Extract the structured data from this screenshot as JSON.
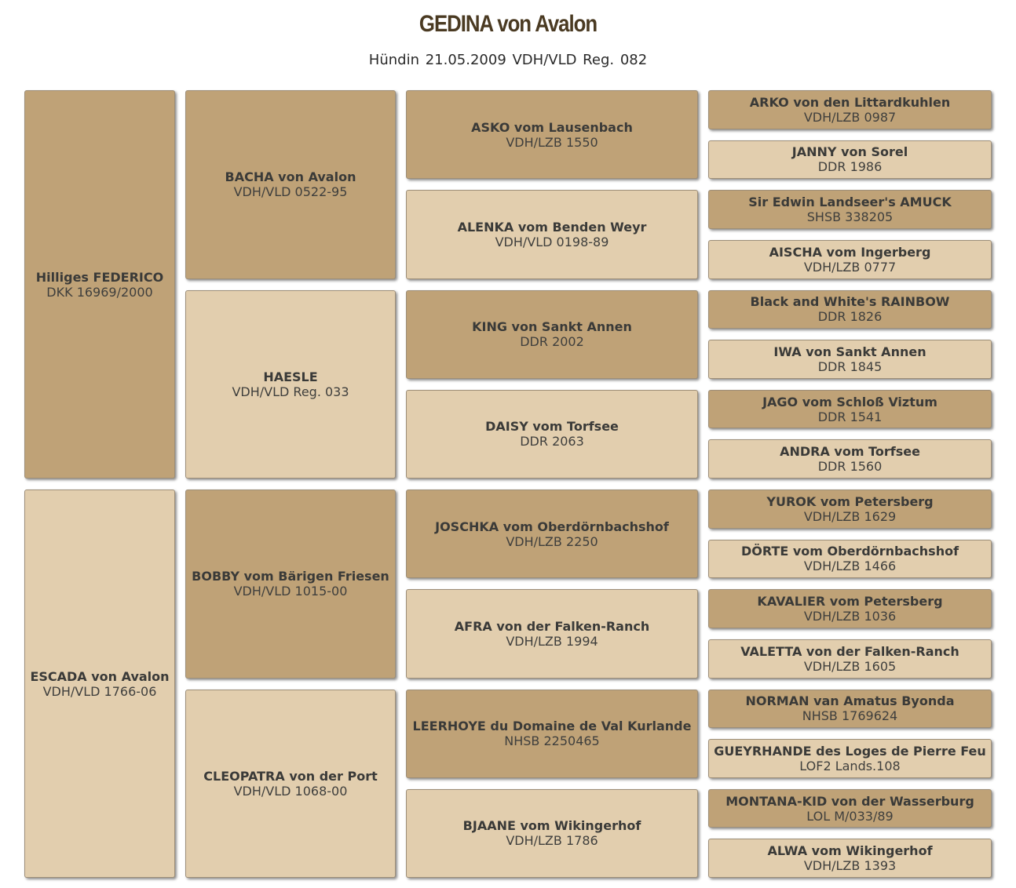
{
  "header": {
    "title": "GEDINA von Avalon",
    "subtitle": "Hündin 21.05.2009  VDH/VLD Reg. 082"
  },
  "colors": {
    "male": "#bfa277",
    "female": "#e2ceae"
  },
  "pedigree": {
    "parents": [
      {
        "name": "Hilliges FEDERICO",
        "reg": "DKK 16969/2000"
      },
      {
        "name": "ESCADA von Avalon",
        "reg": "VDH/VLD 1766-06"
      }
    ],
    "grandparents": [
      {
        "name": "BACHA von Avalon",
        "reg": "VDH/VLD 0522-95"
      },
      {
        "name": "HAESLE",
        "reg": "VDH/VLD Reg. 033"
      },
      {
        "name": "BOBBY vom Bärigen Friesen",
        "reg": "VDH/VLD 1015-00"
      },
      {
        "name": "CLEOPATRA von der Port",
        "reg": "VDH/VLD 1068-00"
      }
    ],
    "great_grandparents": [
      {
        "name": "ASKO vom Lausenbach",
        "reg": "VDH/LZB 1550"
      },
      {
        "name": "ALENKA vom Benden Weyr",
        "reg": "VDH/VLD 0198-89"
      },
      {
        "name": "KING von Sankt Annen",
        "reg": "DDR 2002"
      },
      {
        "name": "DAISY vom Torfsee",
        "reg": "DDR 2063"
      },
      {
        "name": "JOSCHKA vom Oberdörnbachshof",
        "reg": "VDH/LZB 2250"
      },
      {
        "name": "AFRA von der Falken-Ranch",
        "reg": "VDH/LZB 1994"
      },
      {
        "name": "LEERHOYE du Domaine de Val Kurlande",
        "reg": "NHSB 2250465"
      },
      {
        "name": "BJAANE vom Wikingerhof",
        "reg": "VDH/LZB 1786"
      }
    ],
    "great_great_grandparents": [
      {
        "name": "ARKO von den Littardkuhlen",
        "reg": "VDH/LZB 0987"
      },
      {
        "name": "JANNY von Sorel",
        "reg": "DDR 1986"
      },
      {
        "name": "Sir Edwin Landseer's AMUCK",
        "reg": "SHSB 338205"
      },
      {
        "name": "AISCHA vom Ingerberg",
        "reg": "VDH/LZB 0777"
      },
      {
        "name": "Black and White's RAINBOW",
        "reg": "DDR 1826"
      },
      {
        "name": "IWA von Sankt Annen",
        "reg": "DDR 1845"
      },
      {
        "name": "JAGO vom Schloß Viztum",
        "reg": "DDR 1541"
      },
      {
        "name": "ANDRA vom Torfsee",
        "reg": "DDR 1560"
      },
      {
        "name": "YUROK vom Petersberg",
        "reg": "VDH/LZB 1629"
      },
      {
        "name": "DÖRTE vom Oberdörnbachshof",
        "reg": "VDH/LZB 1466"
      },
      {
        "name": "KAVALIER vom Petersberg",
        "reg": "VDH/LZB 1036"
      },
      {
        "name": "VALETTA von der Falken-Ranch",
        "reg": "VDH/LZB 1605"
      },
      {
        "name": "NORMAN van Amatus Byonda",
        "reg": "NHSB 1769624"
      },
      {
        "name": "GUEYRHANDE des Loges de Pierre Feu",
        "reg": "LOF2 Lands.108"
      },
      {
        "name": "MONTANA-KID von der Wasserburg",
        "reg": "LOL M/033/89"
      },
      {
        "name": "ALWA vom Wikingerhof",
        "reg": "VDH/LZB 1393"
      }
    ]
  }
}
